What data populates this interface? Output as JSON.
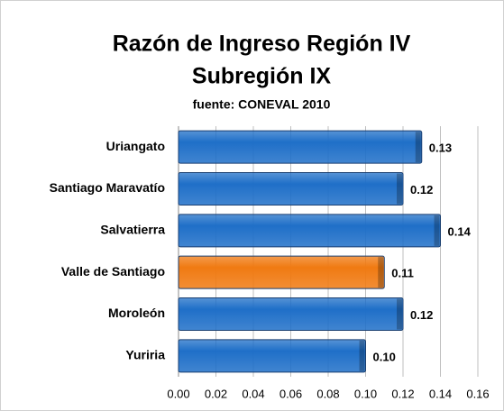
{
  "chart_data": {
    "type": "bar",
    "orientation": "horizontal",
    "title": [
      "Razón de Ingreso Región IV",
      "Subregión IX"
    ],
    "subtitle": "fuente: CONEVAL 2010",
    "categories": [
      "Uriangato",
      "Santiago Maravatío",
      "Salvatierra",
      "Valle de Santiago",
      "Moroleón",
      "Yuriria"
    ],
    "values": [
      0.13,
      0.12,
      0.14,
      0.11,
      0.12,
      0.1
    ],
    "value_labels": [
      "0.13",
      "0.12",
      "0.14",
      "0.11",
      "0.12",
      "0.10"
    ],
    "colors": [
      "#1f6fc8",
      "#1f6fc8",
      "#1f6fc8",
      "#f07a12",
      "#1f6fc8",
      "#1f6fc8"
    ],
    "xlim": [
      0,
      0.16
    ],
    "xticks": [
      {
        "value": 0,
        "label": "0.00"
      },
      {
        "value": 0.02,
        "label": "0.02"
      },
      {
        "value": 0.04,
        "label": "0.04"
      },
      {
        "value": 0.06,
        "label": "0.06"
      },
      {
        "value": 0.08,
        "label": "0.08"
      },
      {
        "value": 0.1,
        "label": "0.10"
      },
      {
        "value": 0.12,
        "label": "0.12"
      },
      {
        "value": 0.14,
        "label": "0.14"
      },
      {
        "value": 0.16,
        "label": "0.16"
      }
    ],
    "grid": true
  }
}
